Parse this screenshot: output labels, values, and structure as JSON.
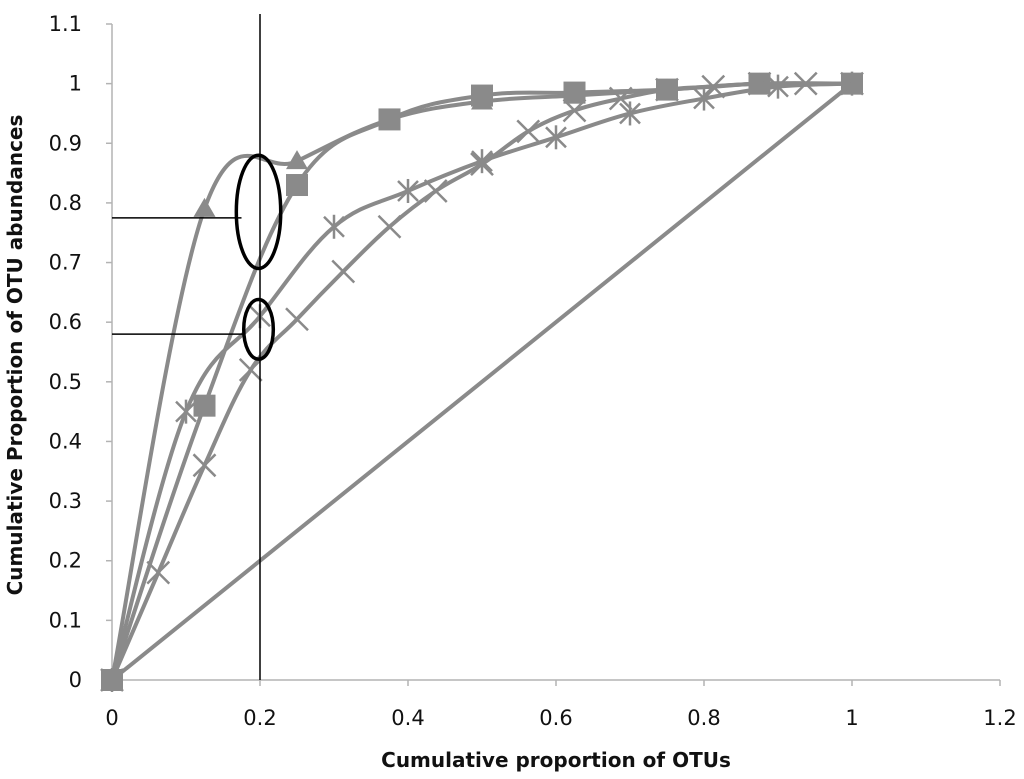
{
  "chart_data": {
    "type": "line",
    "title": "",
    "xlabel": "Cumulative proportion of OTUs",
    "ylabel": "Cumulative Proportion of OTU abundances",
    "xlim": [
      0,
      1.2
    ],
    "ylim": [
      0,
      1.1
    ],
    "xticks": [
      0,
      0.2,
      0.4,
      0.6,
      0.8,
      1,
      1.2
    ],
    "yticks": [
      0,
      0.1,
      0.2,
      0.3,
      0.4,
      0.5,
      0.6,
      0.7,
      0.8,
      0.9,
      1,
      1.1
    ],
    "xtick_labels": [
      "0",
      "0.2",
      "0.4",
      "0.6",
      "0.8",
      "1",
      "1.2"
    ],
    "ytick_labels": [
      "0",
      "0.1",
      "0.2",
      "0.3",
      "0.4",
      "0.5",
      "0.6",
      "0.7",
      "0.8",
      "0.9",
      "1",
      "1.1"
    ],
    "grid": false,
    "legend": "none",
    "series_color": "#8a8a8a",
    "series": [
      {
        "name": "triangle",
        "marker": "triangle",
        "x": [
          0,
          0.125,
          0.25,
          0.375,
          0.5,
          0.625,
          0.75,
          0.875,
          1
        ],
        "y": [
          0,
          0.79,
          0.87,
          0.94,
          0.97,
          0.98,
          0.99,
          1.0,
          1.0
        ]
      },
      {
        "name": "square",
        "marker": "square",
        "x": [
          0,
          0.125,
          0.25,
          0.375,
          0.5,
          0.625,
          0.75,
          0.875,
          1
        ],
        "y": [
          0,
          0.46,
          0.83,
          0.94,
          0.98,
          0.985,
          0.99,
          1.0,
          1.0
        ]
      },
      {
        "name": "star",
        "marker": "star",
        "x": [
          0,
          0.1,
          0.2,
          0.3,
          0.4,
          0.5,
          0.6,
          0.7,
          0.8,
          0.9,
          1
        ],
        "y": [
          0,
          0.45,
          0.61,
          0.76,
          0.82,
          0.87,
          0.91,
          0.95,
          0.975,
          0.995,
          1.0
        ]
      },
      {
        "name": "cross",
        "marker": "x",
        "x": [
          0,
          0.0625,
          0.125,
          0.1875,
          0.25,
          0.3125,
          0.375,
          0.4375,
          0.5,
          0.5625,
          0.625,
          0.6875,
          0.75,
          0.8125,
          0.875,
          0.9375,
          1
        ],
        "y": [
          0,
          0.18,
          0.36,
          0.52,
          0.605,
          0.685,
          0.76,
          0.82,
          0.865,
          0.92,
          0.955,
          0.975,
          0.99,
          0.995,
          1.0,
          1.0,
          1.0
        ]
      },
      {
        "name": "equality-line",
        "marker": "none",
        "x": [
          0,
          1
        ],
        "y": [
          0,
          1
        ]
      }
    ],
    "annotations": [
      {
        "type": "vertical-line",
        "x": 0.2
      },
      {
        "type": "horizontal-pointer",
        "y": 0.775,
        "x_end": 0.175
      },
      {
        "type": "horizontal-pointer",
        "y": 0.58,
        "x_end": 0.18
      },
      {
        "type": "ellipse",
        "cx": 0.198,
        "cy": 0.785,
        "rx": 0.03,
        "ry": 0.095
      },
      {
        "type": "ellipse",
        "cx": 0.198,
        "cy": 0.588,
        "rx": 0.02,
        "ry": 0.05
      }
    ]
  }
}
